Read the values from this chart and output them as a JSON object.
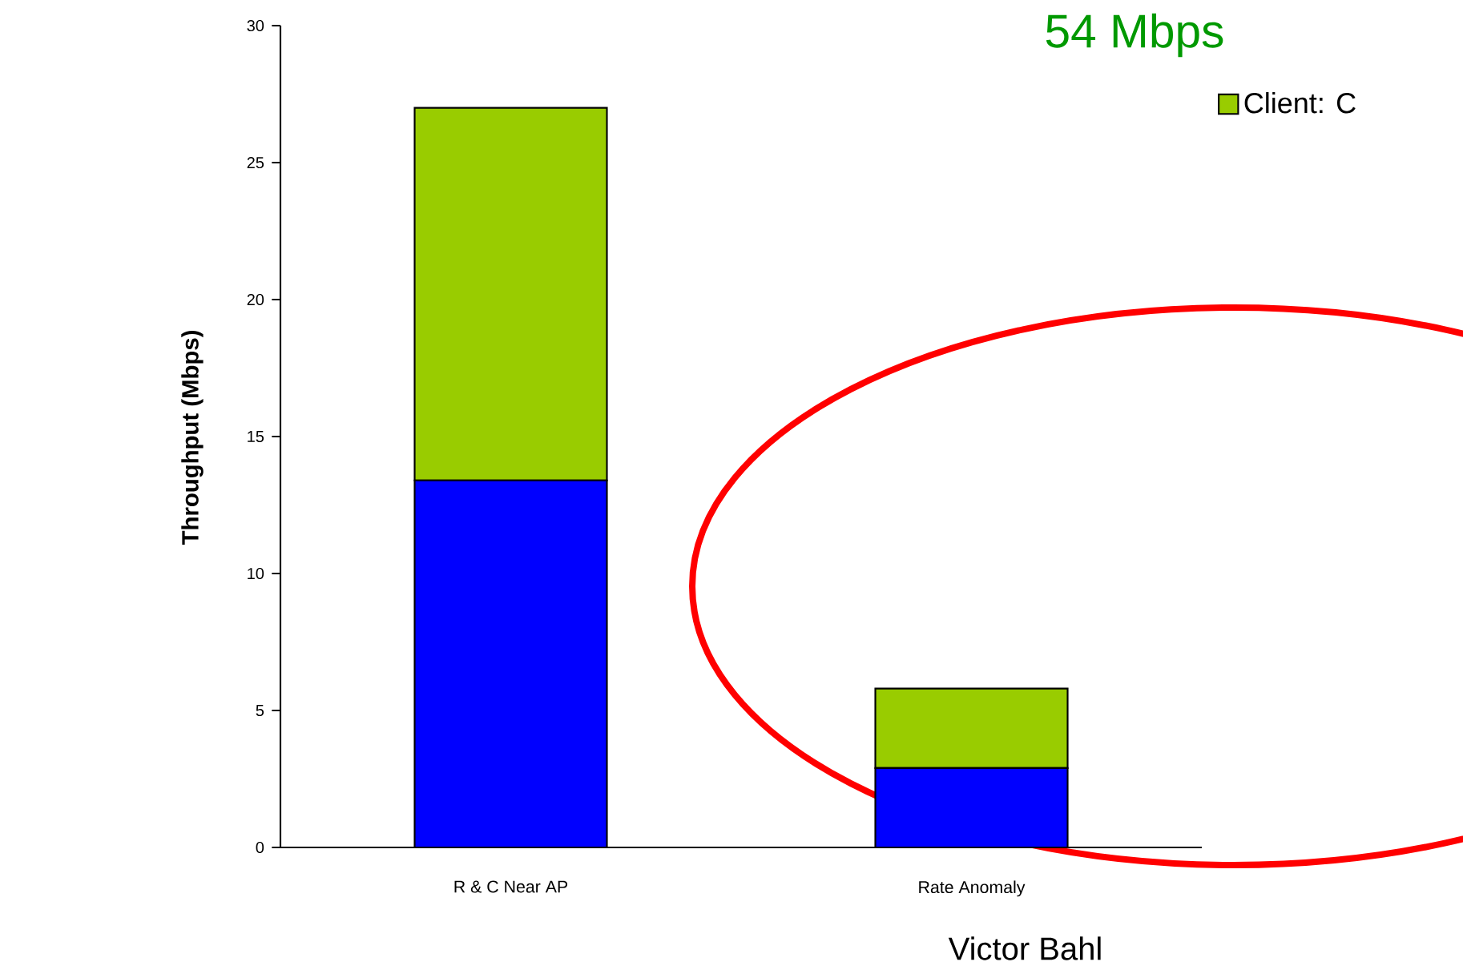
{
  "chart_data": {
    "type": "bar",
    "stacked": true,
    "title": "54 Mbps",
    "ylabel": "Throughput (Mbps)",
    "categories": [
      "R & C Near AP",
      "Rate Anomaly"
    ],
    "series": [
      {
        "color": "#0000ff",
        "values": [
          13.4,
          2.9
        ]
      },
      {
        "name": "Client: C",
        "color": "#99cc00",
        "values": [
          13.6,
          2.9
        ]
      }
    ],
    "ylim": [
      0,
      30
    ],
    "yticks": [
      0,
      5,
      10,
      15,
      20,
      25,
      30
    ],
    "legend": "top right",
    "annotations": [
      "Victor Bahl"
    ]
  }
}
